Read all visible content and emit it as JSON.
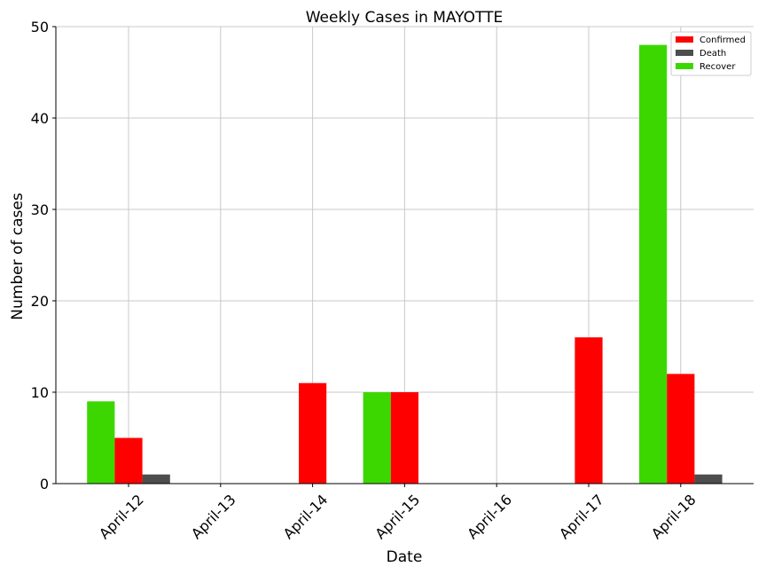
{
  "chart_data": {
    "type": "bar",
    "title": "Weekly Cases in MAYOTTE",
    "xlabel": "Date",
    "ylabel": "Number of cases",
    "categories": [
      "April-12",
      "April-13",
      "April-14",
      "April-15",
      "April-16",
      "April-17",
      "April-18"
    ],
    "series": [
      {
        "name": "Confirmed",
        "color": "#ff0000",
        "values": [
          5,
          0,
          11,
          10,
          0,
          16,
          12
        ]
      },
      {
        "name": "Death",
        "color": "#4d4d4d",
        "values": [
          1,
          0,
          0,
          0,
          0,
          0,
          1
        ]
      },
      {
        "name": "Recover",
        "color": "#3cd700",
        "values": [
          9,
          0,
          0,
          10,
          0,
          0,
          48
        ]
      }
    ],
    "ylim": [
      0,
      50
    ],
    "yticks": [
      0,
      10,
      20,
      30,
      40,
      50
    ],
    "grid": true,
    "legend_position": "top-right"
  }
}
